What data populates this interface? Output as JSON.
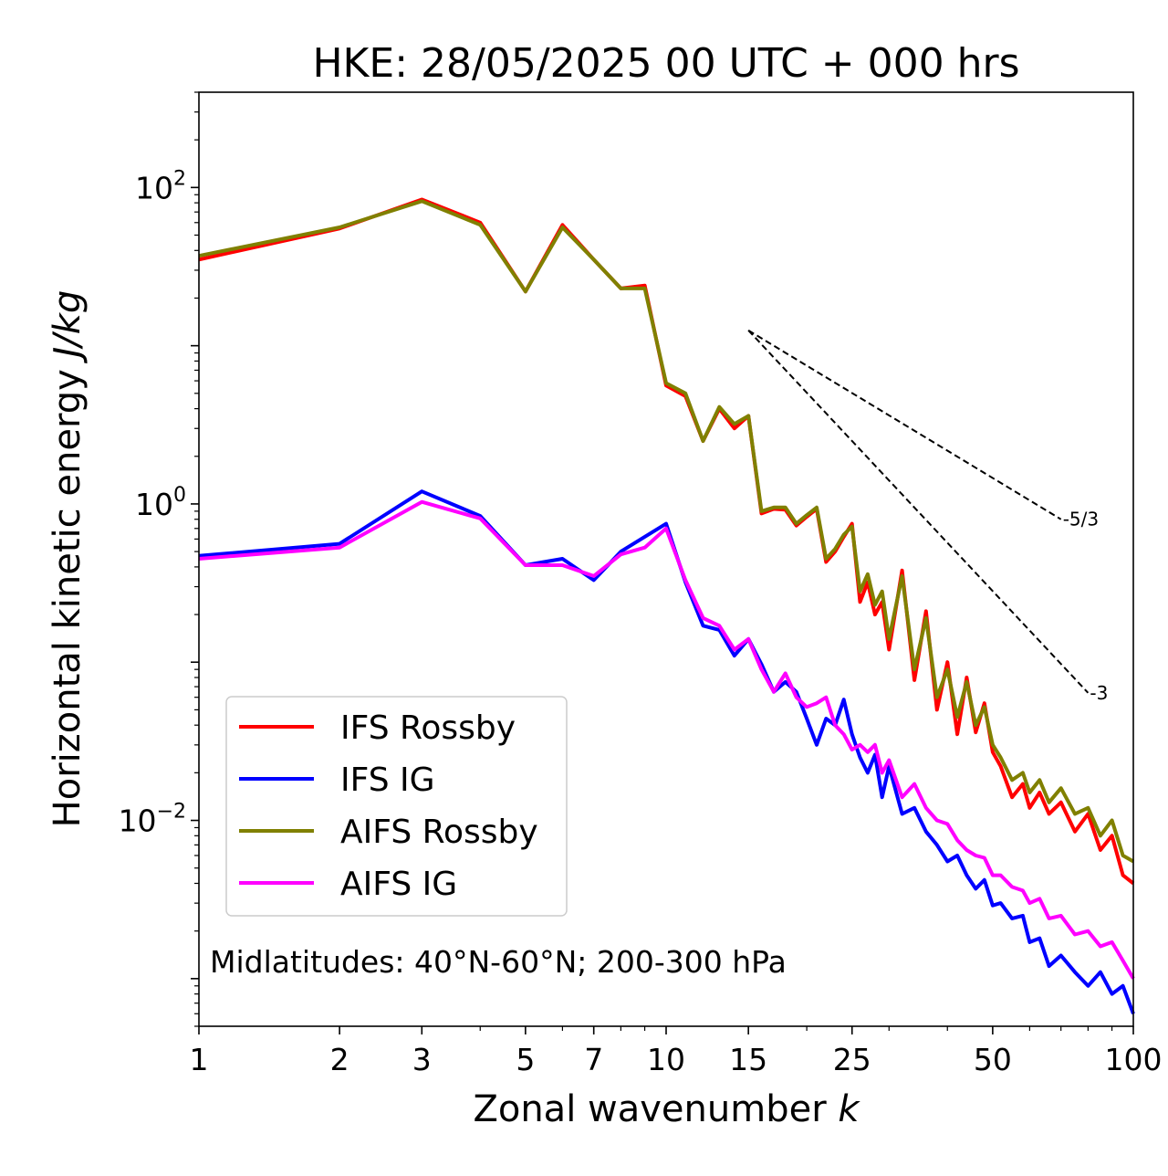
{
  "chart_data": {
    "type": "line",
    "title": "HKE: 28/05/2025 00 UTC + 000 hrs",
    "xlabel_text": "Zonal wavenumber ",
    "xlabel_var": "k",
    "ylabel_text": "Horizontal kinetic energy ",
    "ylabel_unit": "J/kg",
    "x_scale": "log",
    "y_scale": "log",
    "xlim": [
      1,
      100
    ],
    "ylim": [
      0.0005,
      400
    ],
    "grid": false,
    "legend_position": "lower-left",
    "annotation": "Midlatitudes: 40°N-60°N; 200-300 hPa",
    "x_ticks": [
      {
        "value": 1,
        "label": "1"
      },
      {
        "value": 2,
        "label": "2"
      },
      {
        "value": 3,
        "label": "3"
      },
      {
        "value": 5,
        "label": "5"
      },
      {
        "value": 7,
        "label": "7"
      },
      {
        "value": 10,
        "label": "10"
      },
      {
        "value": 15,
        "label": "15"
      },
      {
        "value": 25,
        "label": "25"
      },
      {
        "value": 50,
        "label": "50"
      },
      {
        "value": 100,
        "label": "100"
      }
    ],
    "y_ticks": [
      {
        "value": 100,
        "base": "10",
        "exp": "2"
      },
      {
        "value": 1,
        "base": "10",
        "exp": "0"
      },
      {
        "value": 0.01,
        "base": "10",
        "exp": "−2"
      }
    ],
    "reference_lines": [
      {
        "label": "-5/3",
        "x": [
          15,
          70
        ],
        "y": [
          12.5,
          0.8
        ]
      },
      {
        "label": "-3",
        "x": [
          15,
          80
        ],
        "y": [
          12.5,
          0.064
        ]
      }
    ],
    "series": [
      {
        "name": "IFS Rossby",
        "color": "#ff0000",
        "x": [
          1,
          2,
          3,
          4,
          5,
          6,
          7,
          8,
          9,
          10,
          11,
          12,
          13,
          14,
          15,
          16,
          17,
          18,
          19,
          20,
          21,
          22,
          23,
          24,
          25,
          26,
          27,
          28,
          29,
          30,
          32,
          34,
          36,
          38,
          40,
          42,
          44,
          46,
          48,
          50,
          52,
          55,
          58,
          60,
          63,
          66,
          70,
          75,
          80,
          85,
          90,
          95,
          100
        ],
        "y": [
          35,
          55,
          84,
          60,
          22,
          58,
          35,
          23,
          24,
          5.6,
          4.8,
          2.5,
          4,
          3,
          3.6,
          0.87,
          0.93,
          0.92,
          0.73,
          0.83,
          0.93,
          0.43,
          0.5,
          0.62,
          0.75,
          0.24,
          0.32,
          0.2,
          0.24,
          0.12,
          0.38,
          0.077,
          0.21,
          0.05,
          0.1,
          0.035,
          0.08,
          0.036,
          0.055,
          0.027,
          0.022,
          0.014,
          0.017,
          0.012,
          0.015,
          0.011,
          0.013,
          0.0085,
          0.011,
          0.0065,
          0.008,
          0.0045,
          0.004
        ]
      },
      {
        "name": "IFS IG",
        "color": "#0000ff",
        "x": [
          1,
          2,
          3,
          4,
          5,
          6,
          7,
          8,
          9,
          10,
          11,
          12,
          13,
          14,
          15,
          16,
          17,
          18,
          19,
          20,
          21,
          22,
          23,
          24,
          25,
          26,
          27,
          28,
          29,
          30,
          32,
          34,
          36,
          38,
          40,
          42,
          44,
          46,
          48,
          50,
          52,
          55,
          58,
          60,
          63,
          66,
          70,
          75,
          80,
          85,
          90,
          95,
          100
        ],
        "y": [
          0.47,
          0.56,
          1.2,
          0.84,
          0.41,
          0.45,
          0.33,
          0.5,
          0.62,
          0.75,
          0.32,
          0.17,
          0.16,
          0.11,
          0.14,
          0.097,
          0.065,
          0.075,
          0.065,
          0.044,
          0.03,
          0.044,
          0.04,
          0.058,
          0.035,
          0.025,
          0.02,
          0.026,
          0.014,
          0.022,
          0.011,
          0.012,
          0.0085,
          0.007,
          0.0055,
          0.006,
          0.0045,
          0.0037,
          0.0042,
          0.0029,
          0.003,
          0.0024,
          0.0025,
          0.0017,
          0.0018,
          0.0012,
          0.0014,
          0.0011,
          0.0009,
          0.0011,
          0.0008,
          0.0009,
          0.0006
        ]
      },
      {
        "name": "AIFS Rossby",
        "color": "#808000",
        "x": [
          1,
          2,
          3,
          4,
          5,
          6,
          7,
          8,
          9,
          10,
          11,
          12,
          13,
          14,
          15,
          16,
          17,
          18,
          19,
          20,
          21,
          22,
          23,
          24,
          25,
          26,
          27,
          28,
          29,
          30,
          32,
          34,
          36,
          38,
          40,
          42,
          44,
          46,
          48,
          50,
          52,
          55,
          58,
          60,
          63,
          66,
          70,
          75,
          80,
          85,
          90,
          95,
          100
        ],
        "y": [
          37,
          56,
          82,
          58,
          22,
          56,
          35,
          23,
          23,
          5.8,
          5,
          2.5,
          4.1,
          3.2,
          3.6,
          0.9,
          0.95,
          0.95,
          0.75,
          0.85,
          0.95,
          0.45,
          0.52,
          0.64,
          0.72,
          0.28,
          0.36,
          0.23,
          0.28,
          0.14,
          0.35,
          0.09,
          0.19,
          0.06,
          0.09,
          0.045,
          0.075,
          0.04,
          0.052,
          0.03,
          0.025,
          0.018,
          0.02,
          0.015,
          0.018,
          0.013,
          0.016,
          0.011,
          0.012,
          0.008,
          0.01,
          0.006,
          0.0055
        ]
      },
      {
        "name": "AIFS IG",
        "color": "#ff00ff",
        "x": [
          1,
          2,
          3,
          4,
          5,
          6,
          7,
          8,
          9,
          10,
          11,
          12,
          13,
          14,
          15,
          16,
          17,
          18,
          19,
          20,
          21,
          22,
          23,
          24,
          25,
          26,
          27,
          28,
          29,
          30,
          32,
          34,
          36,
          38,
          40,
          42,
          44,
          46,
          48,
          50,
          52,
          55,
          58,
          60,
          63,
          66,
          70,
          75,
          80,
          85,
          90,
          95,
          100
        ],
        "y": [
          0.45,
          0.53,
          1.03,
          0.81,
          0.41,
          0.41,
          0.35,
          0.48,
          0.53,
          0.7,
          0.33,
          0.19,
          0.17,
          0.12,
          0.14,
          0.09,
          0.065,
          0.085,
          0.06,
          0.052,
          0.055,
          0.06,
          0.04,
          0.035,
          0.028,
          0.03,
          0.027,
          0.03,
          0.02,
          0.024,
          0.014,
          0.017,
          0.012,
          0.01,
          0.0095,
          0.0075,
          0.0065,
          0.006,
          0.0058,
          0.0045,
          0.0045,
          0.0038,
          0.0036,
          0.003,
          0.0032,
          0.0024,
          0.0025,
          0.0019,
          0.002,
          0.0016,
          0.0017,
          0.0013,
          0.001
        ]
      }
    ]
  }
}
